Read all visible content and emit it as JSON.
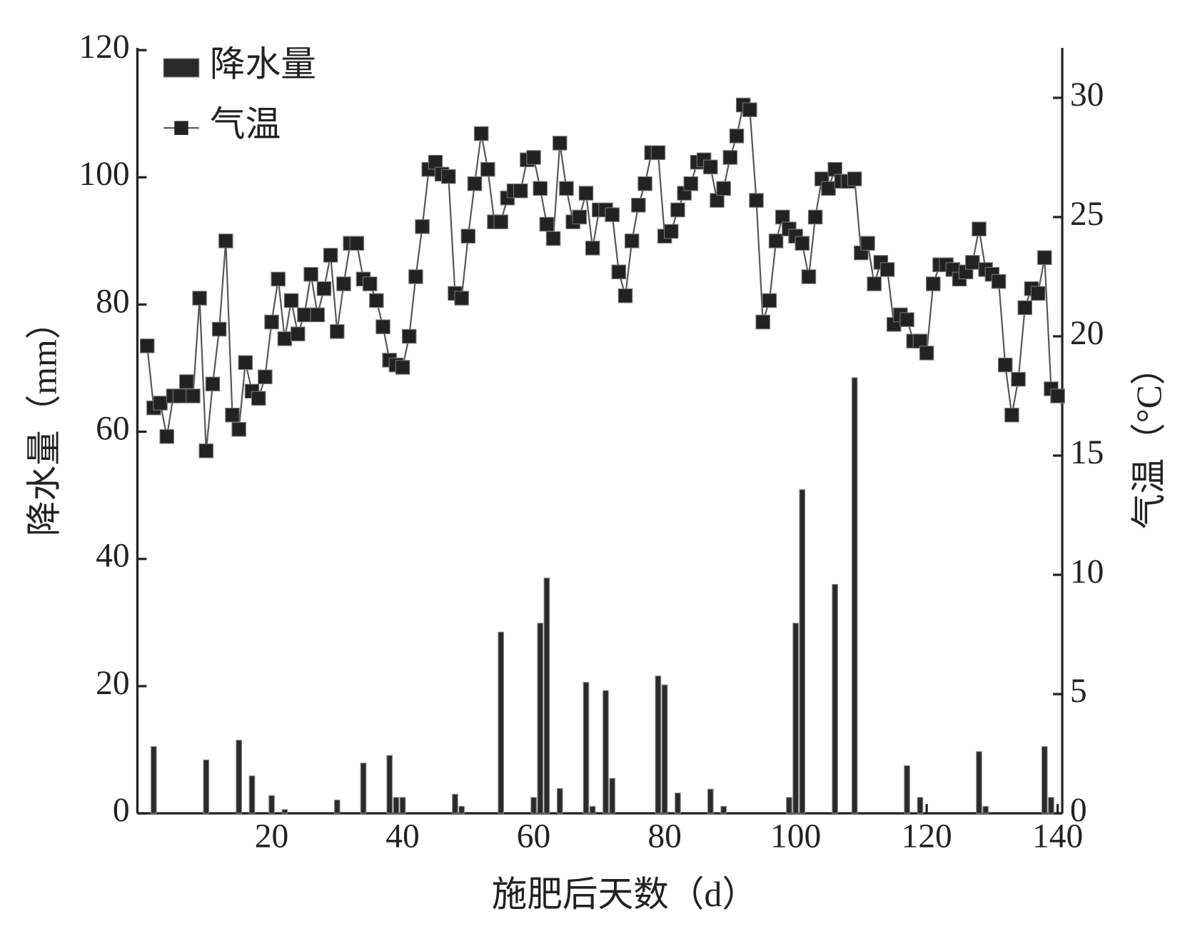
{
  "chart_data": {
    "type": "bar-line",
    "xlabel": "施肥后天数（d）",
    "ylabel": "降水量（mm）",
    "y2label": "气温（°C）",
    "xlim": [
      -0.5,
      140.7
    ],
    "xticks": [
      20,
      40,
      60,
      80,
      100,
      120,
      140
    ],
    "ylim": [
      0,
      120
    ],
    "yticks": [
      0,
      20,
      40,
      60,
      80,
      100,
      120
    ],
    "y2lim": [
      0,
      32
    ],
    "y2ticks": [
      0,
      5,
      10,
      15,
      20,
      25,
      30
    ],
    "legend": "upper left",
    "x": [
      1,
      2,
      3,
      4,
      5,
      6,
      7,
      8,
      9,
      10,
      11,
      12,
      13,
      14,
      15,
      16,
      17,
      18,
      19,
      20,
      21,
      22,
      23,
      24,
      25,
      26,
      27,
      28,
      29,
      30,
      31,
      32,
      33,
      34,
      35,
      36,
      37,
      38,
      39,
      40,
      41,
      42,
      43,
      44,
      45,
      46,
      47,
      48,
      49,
      50,
      51,
      52,
      53,
      54,
      55,
      56,
      57,
      58,
      59,
      60,
      61,
      62,
      63,
      64,
      65,
      66,
      67,
      68,
      69,
      70,
      71,
      72,
      73,
      74,
      75,
      76,
      77,
      78,
      79,
      80,
      81,
      82,
      83,
      84,
      85,
      86,
      87,
      88,
      89,
      90,
      91,
      92,
      93,
      94,
      95,
      96,
      97,
      98,
      99,
      100,
      101,
      102,
      103,
      104,
      105,
      106,
      107,
      108,
      109,
      110,
      111,
      112,
      113,
      114,
      115,
      116,
      117,
      118,
      119,
      120,
      121,
      122,
      123,
      124,
      125,
      126,
      127,
      128,
      129,
      130,
      131,
      132,
      133,
      134,
      135,
      136,
      137,
      138,
      139,
      140
    ],
    "series": [
      {
        "name": "降水量",
        "type": "bar",
        "color": "#2a2a2a",
        "values": [
          0,
          10.5,
          0,
          0,
          0,
          0,
          0,
          0,
          0,
          8.4,
          0,
          0,
          0,
          0,
          11.5,
          0,
          5.9,
          0,
          0,
          2.8,
          0,
          0.6,
          0,
          0,
          0,
          0,
          0,
          0,
          0,
          2.1,
          0,
          0,
          0,
          7.9,
          0,
          0,
          0,
          9.1,
          2.5,
          2.5,
          0,
          0,
          0,
          0,
          0,
          0,
          0,
          3.0,
          1.1,
          0,
          0,
          0,
          0,
          0,
          28.5,
          0,
          0,
          0,
          0,
          2.5,
          29.9,
          37.0,
          0,
          3.9,
          0,
          0,
          0,
          20.6,
          1.1,
          0,
          19.3,
          5.5,
          0,
          0,
          0,
          0,
          0,
          0,
          21.6,
          20.2,
          0,
          3.2,
          0,
          0,
          0,
          0,
          3.8,
          0,
          1.1,
          0,
          0,
          0,
          0,
          0,
          0,
          0,
          0,
          0,
          2.5,
          29.9,
          50.9,
          0,
          0,
          0,
          0,
          36.0,
          0,
          0,
          68.5,
          0,
          0,
          0,
          0,
          0,
          0,
          0,
          7.5,
          0,
          2.5,
          0,
          0,
          0,
          0,
          0,
          0,
          0,
          0,
          9.7,
          1.1,
          0,
          0,
          0,
          0,
          0,
          0,
          0,
          0,
          10.5,
          2.5,
          0
        ]
      },
      {
        "name": "气温",
        "type": "line",
        "axis": "y2",
        "color": "#222222",
        "values": [
          19.6,
          17.0,
          17.2,
          15.8,
          17.5,
          17.5,
          18.1,
          17.5,
          21.6,
          15.2,
          18.0,
          20.3,
          24.0,
          16.7,
          16.1,
          18.9,
          17.7,
          17.4,
          18.3,
          20.6,
          22.4,
          19.9,
          21.5,
          20.1,
          20.9,
          22.6,
          20.9,
          22.0,
          23.4,
          20.2,
          22.2,
          23.9,
          23.9,
          22.4,
          22.2,
          21.5,
          20.4,
          19.0,
          18.8,
          18.7,
          20.0,
          22.5,
          24.6,
          27.0,
          27.3,
          26.8,
          26.7,
          21.8,
          21.6,
          24.2,
          26.4,
          28.5,
          27.0,
          24.8,
          24.8,
          25.8,
          26.1,
          26.1,
          27.4,
          27.5,
          26.2,
          24.7,
          24.1,
          28.1,
          26.2,
          24.8,
          25.0,
          26.0,
          23.7,
          25.3,
          25.3,
          25.1,
          22.7,
          21.7,
          24.0,
          25.5,
          26.4,
          27.7,
          27.7,
          24.2,
          24.4,
          25.3,
          26.0,
          26.4,
          27.3,
          27.4,
          27.1,
          25.7,
          26.2,
          27.5,
          28.4,
          29.7,
          29.5,
          25.7,
          20.6,
          21.5,
          24.0,
          25.0,
          24.5,
          24.2,
          23.9,
          22.5,
          25.0,
          26.6,
          26.2,
          27.0,
          26.5,
          26.5,
          26.6,
          23.5,
          23.9,
          22.2,
          23.1,
          22.8,
          20.5,
          20.9,
          20.7,
          19.8,
          19.8,
          19.3,
          22.2,
          23.0,
          23.0,
          22.8,
          22.4,
          22.7,
          23.1,
          24.5,
          22.8,
          22.6,
          22.3,
          18.8,
          16.7,
          18.2,
          21.2,
          22.0,
          21.8,
          23.3,
          17.8,
          17.5
        ]
      }
    ]
  }
}
